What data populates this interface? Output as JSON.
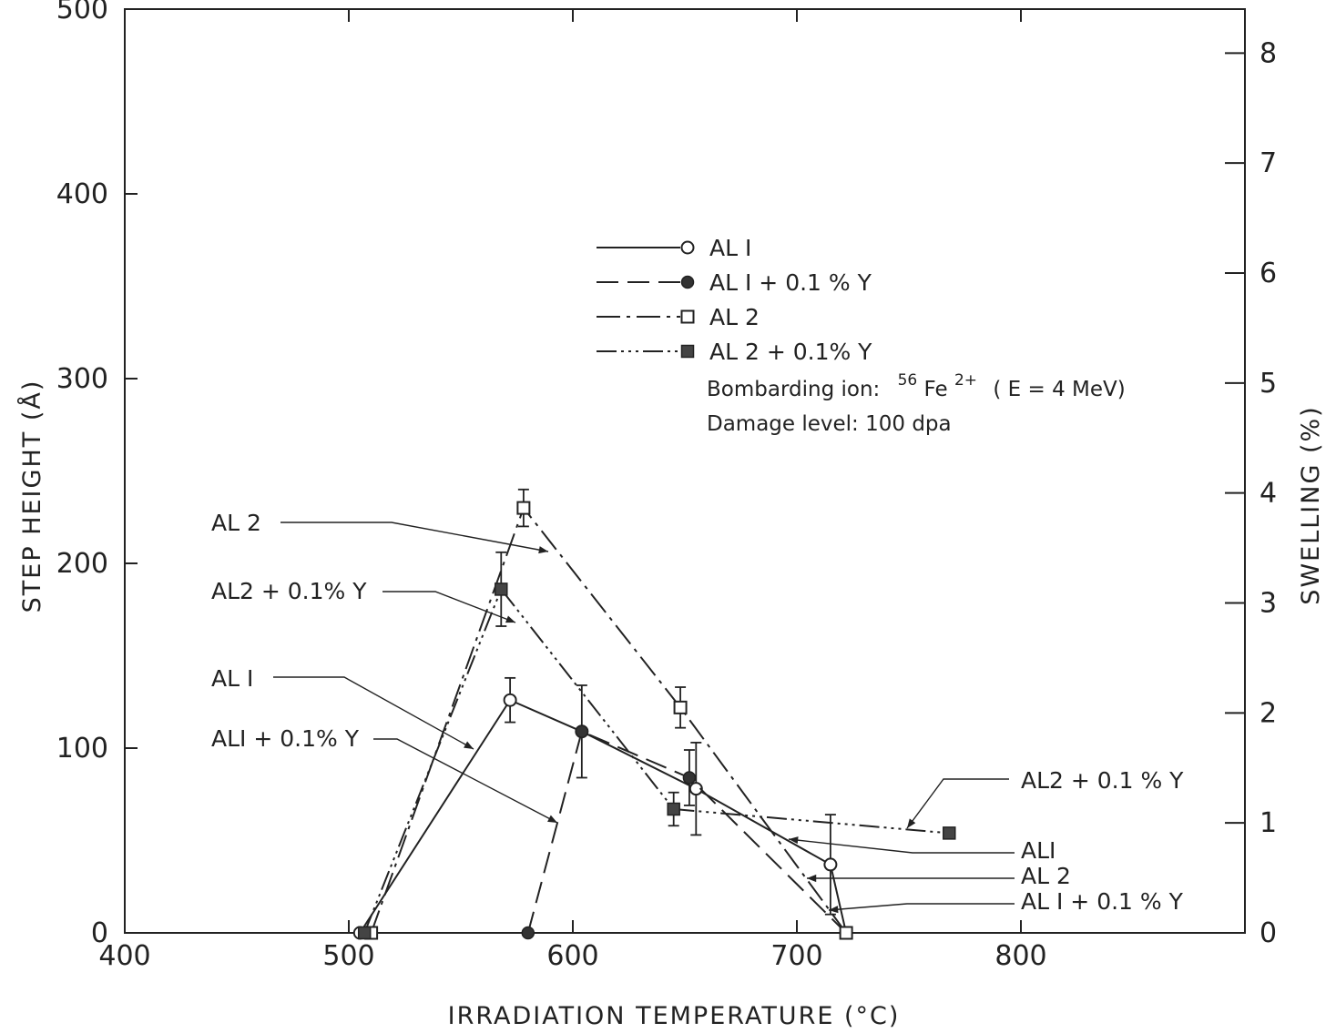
{
  "chart_data": {
    "type": "line",
    "xlabel": "IRRADIATION TEMPERATURE (°C)",
    "ylabel": "STEP HEIGHT (Å)",
    "y2label": "SWELLING (%)",
    "xlim": [
      400,
      900
    ],
    "ylim": [
      0,
      500
    ],
    "y2lim": [
      0,
      8.4
    ],
    "xticks": [
      400,
      500,
      600,
      700,
      800
    ],
    "yticks": [
      0,
      100,
      200,
      300,
      400,
      500
    ],
    "y2ticks": [
      0,
      1,
      2,
      3,
      4,
      5,
      6,
      7,
      8
    ],
    "grid": false,
    "legend_position": "center-top",
    "series": [
      {
        "name": "AL I",
        "marker": "open-circle",
        "dash": "",
        "points": [
          {
            "x": 505,
            "y": 0
          },
          {
            "x": 572,
            "y": 126,
            "err": 12
          },
          {
            "x": 604,
            "y": 109,
            "err": 25
          },
          {
            "x": 655,
            "y": 78,
            "err": 25
          },
          {
            "x": 715,
            "y": 37,
            "err": 27
          },
          {
            "x": 722,
            "y": 0
          }
        ]
      },
      {
        "name": "AL I + 0.1 % Y",
        "marker": "filled-circle",
        "dash": "24,10",
        "points": [
          {
            "x": 580,
            "y": 0
          },
          {
            "x": 604,
            "y": 109
          },
          {
            "x": 652,
            "y": 84,
            "err": 15
          },
          {
            "x": 722,
            "y": 0
          }
        ]
      },
      {
        "name": "AL 2",
        "marker": "open-square",
        "dash": "26,7,4,7",
        "points": [
          {
            "x": 510,
            "y": 0
          },
          {
            "x": 578,
            "y": 230,
            "err": 10
          },
          {
            "x": 648,
            "y": 122,
            "err": 11
          },
          {
            "x": 722,
            "y": 0
          }
        ]
      },
      {
        "name": "AL 2 + 0.1%  Y",
        "marker": "filled-square",
        "dash": "22,5,3,5,3,5,3,5",
        "points": [
          {
            "x": 507,
            "y": 0
          },
          {
            "x": 568,
            "y": 186,
            "err": 20
          },
          {
            "x": 645,
            "y": 67,
            "err": 9
          },
          {
            "x": 768,
            "y": 54
          }
        ]
      }
    ],
    "legend": [
      {
        "label": "AL I",
        "marker": "open-circle",
        "dash": ""
      },
      {
        "label": "AL I + 0.1 % Y",
        "marker": "filled-circle",
        "dash": "24,10"
      },
      {
        "label": "AL 2",
        "marker": "open-square",
        "dash": "26,7,4,7"
      },
      {
        "label": "AL 2 + 0.1%  Y",
        "marker": "filled-square",
        "dash": "22,5,3,5,3,5,3,5"
      }
    ],
    "annotations": {
      "ion_prefix": "Bombarding  ion:",
      "ion_sup_mass": "56",
      "ion_element": "Fe",
      "ion_sup_charge": "2+",
      "ion_energy": "( E = 4 MeV)",
      "damage": "Damage  level:  100  dpa"
    },
    "callouts": [
      {
        "text": "AL 2"
      },
      {
        "text": "AL2 + 0.1% Y"
      },
      {
        "text": "AL I"
      },
      {
        "text": "ALI + 0.1% Y"
      },
      {
        "text": "AL2 + 0.1 % Y"
      },
      {
        "text": "ALI"
      },
      {
        "text": "AL 2"
      },
      {
        "text": "AL I  + 0.1 % Y"
      }
    ]
  }
}
